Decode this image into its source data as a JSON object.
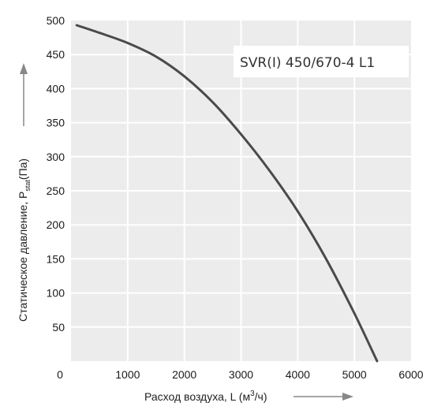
{
  "chart_data": {
    "type": "line",
    "model_label": "SVR(I) 450/670-4 L1",
    "xlabel_prefix": "Расход воздуха, L (м",
    "xlabel_sup": "3",
    "xlabel_suffix": "/ч)",
    "ylabel_prefix": "Статическое давление, P",
    "ylabel_sub": "stat",
    "ylabel_suffix": "(Па)",
    "xlim": [
      0,
      6000
    ],
    "ylim": [
      0,
      500
    ],
    "x_ticks": [
      "0",
      "1000",
      "2000",
      "3000",
      "4000",
      "5000",
      "6000"
    ],
    "y_ticks": [
      "50",
      "100",
      "150",
      "200",
      "250",
      "300",
      "350",
      "400",
      "450",
      "500"
    ],
    "grid": true,
    "colors": {
      "curve": "#4a4a4a",
      "plot_bg": "#ececec",
      "grid": "#ffffff",
      "arrow": "#888888"
    },
    "series": [
      {
        "x": [
          100,
          500,
          1000,
          1500,
          2000,
          2500,
          3000,
          3500,
          4000,
          4500,
          5000,
          5400
        ],
        "y": [
          493,
          482,
          467,
          447,
          418,
          380,
          333,
          280,
          220,
          150,
          70,
          0
        ]
      }
    ]
  }
}
